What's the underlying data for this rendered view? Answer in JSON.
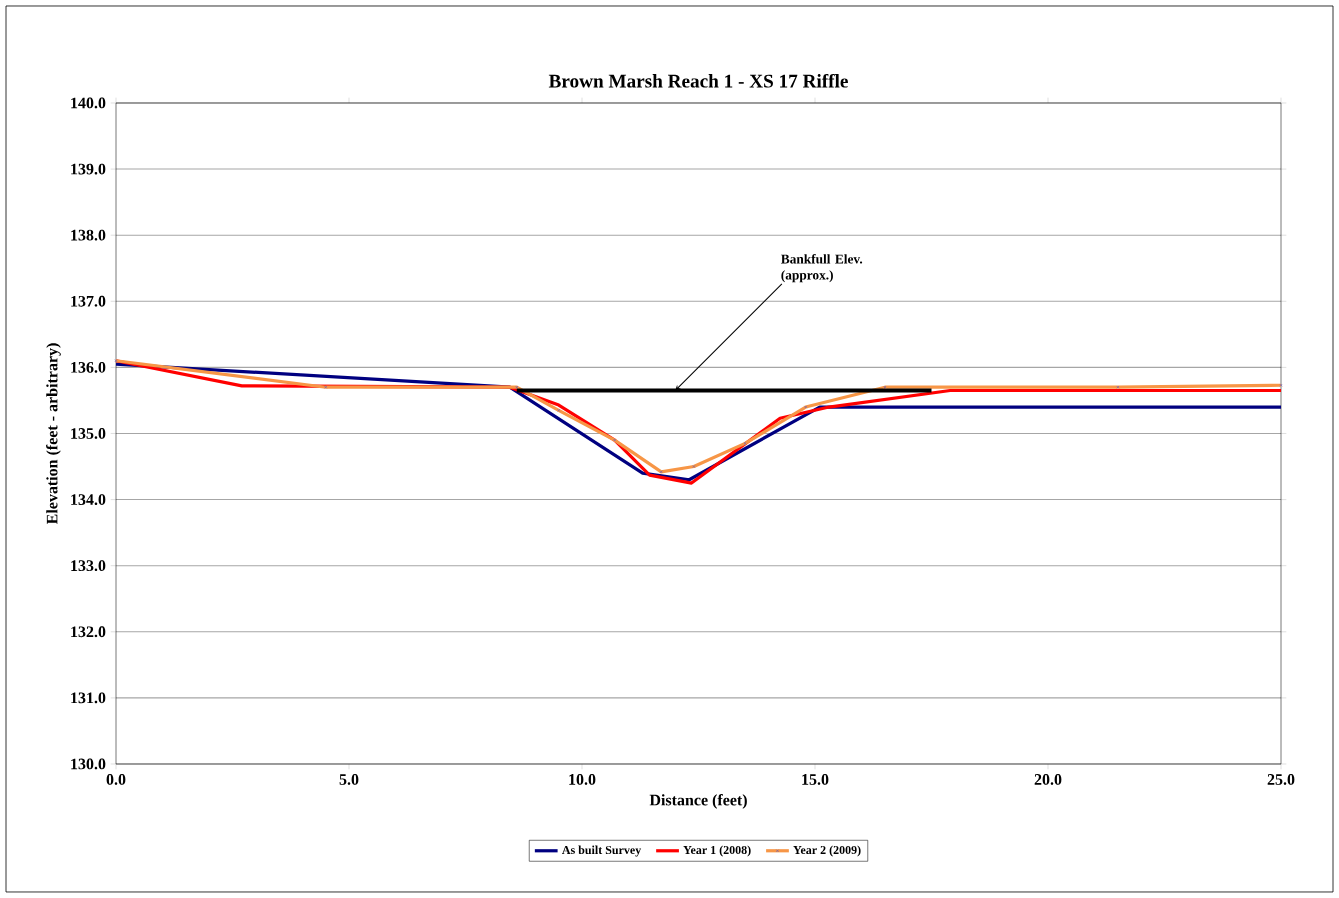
{
  "chart_data": {
    "type": "line",
    "title": "Brown Marsh Reach 1 - XS 17 Riffle",
    "xlabel": "Distance (feet)",
    "ylabel": "Elevation (feet - arbitrary)",
    "xlim": [
      0,
      25
    ],
    "ylim": [
      130,
      140
    ],
    "xticks": [
      {
        "value": 0,
        "label": "0.0"
      },
      {
        "value": 5,
        "label": "5.0"
      },
      {
        "value": 10,
        "label": "10.0"
      },
      {
        "value": 15,
        "label": "15.0"
      },
      {
        "value": 20,
        "label": "20.0"
      },
      {
        "value": 25,
        "label": "25.0"
      }
    ],
    "yticks": [
      {
        "value": 130,
        "label": "130.0"
      },
      {
        "value": 131,
        "label": "131.0"
      },
      {
        "value": 132,
        "label": "132.0"
      },
      {
        "value": 133,
        "label": "133.0"
      },
      {
        "value": 134,
        "label": "134.0"
      },
      {
        "value": 135,
        "label": "135.0"
      },
      {
        "value": 136,
        "label": "136.0"
      },
      {
        "value": 137,
        "label": "137.0"
      },
      {
        "value": 138,
        "label": "138.0"
      },
      {
        "value": 139,
        "label": "139.0"
      },
      {
        "value": 140,
        "label": "140.0"
      }
    ],
    "grid": "y",
    "legend": "bottom",
    "line_style": "solid",
    "series": [
      {
        "name": "As built Survey",
        "color": "#000080",
        "marker": "none",
        "x": [
          0,
          8.45,
          11.3,
          12.3,
          15.1,
          25
        ],
        "values": [
          136.05,
          135.7,
          134.4,
          134.3,
          135.4,
          135.4
        ]
      },
      {
        "name": "Year 1 (2008)",
        "color": "#ff0000",
        "marker": "none",
        "x": [
          0,
          2.7,
          8.45,
          9.5,
          10.7,
          11.45,
          12.35,
          14.25,
          15.3,
          17.9,
          25
        ],
        "values": [
          136.1,
          135.72,
          135.7,
          135.43,
          134.9,
          134.37,
          134.25,
          135.23,
          135.4,
          135.65,
          135.65
        ]
      },
      {
        "name": "Year 2 (2009)",
        "color": "#f79646",
        "marker": "cross",
        "x": [
          0,
          4.5,
          8.6,
          9.5,
          10.7,
          11.7,
          12.4,
          13.5,
          14.8,
          16.5,
          21.5,
          25
        ],
        "values": [
          136.1,
          135.7,
          135.7,
          135.35,
          134.9,
          134.42,
          134.5,
          134.85,
          135.4,
          135.7,
          135.7,
          135.73
        ]
      },
      {
        "type": "line",
        "color": "#000000",
        "marker": "none",
        "x": [
          8.6,
          17.5
        ],
        "values": [
          135.65,
          135.65
        ]
      }
    ],
    "annotations": [
      {
        "text": "Bankfull Elev. (approx.)",
        "x": 12.0,
        "y": 135.65
      }
    ]
  }
}
